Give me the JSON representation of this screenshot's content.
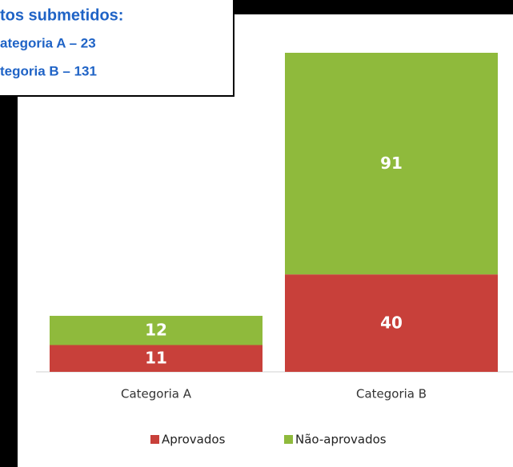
{
  "chart_data": {
    "type": "bar",
    "stacked": true,
    "annotation": [
      "tos submetidos:",
      "ategoria A – 23",
      "tegoria B – 131"
    ],
    "categories": [
      "Categoria A",
      "Categoria B"
    ],
    "series": [
      {
        "name": "Aprovados",
        "color": "#c8403a",
        "values": [
          11,
          40
        ]
      },
      {
        "name": "Não-aprovados",
        "color": "#8fba3c",
        "values": [
          12,
          91
        ]
      }
    ],
    "ylim": [
      0,
      131
    ],
    "legend": "bottom"
  }
}
